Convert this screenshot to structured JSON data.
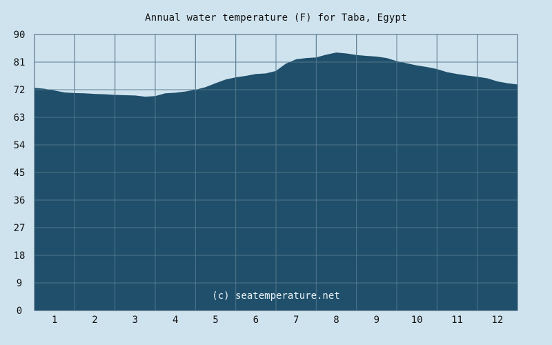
{
  "title": "Annual water temperature (F) for Taba, Egypt",
  "watermark": "(c) seatemperature.net",
  "colors": {
    "background": "#cfe3ee",
    "area_fill": "#1f4f6a",
    "grid": "#5f7f95",
    "text": "#111111"
  },
  "chart_data": {
    "type": "area",
    "title": "Annual water temperature (F) for Taba, Egypt",
    "xlabel": "",
    "ylabel": "",
    "x_ticks": [
      "1",
      "2",
      "3",
      "4",
      "5",
      "6",
      "7",
      "8",
      "9",
      "10",
      "11",
      "12"
    ],
    "y_ticks": [
      "0",
      "9",
      "18",
      "27",
      "36",
      "45",
      "54",
      "63",
      "72",
      "81",
      "90"
    ],
    "ylim": [
      0,
      90
    ],
    "xlim": [
      0.5,
      12.5
    ],
    "grid": true,
    "series": [
      {
        "x": [
          0.5,
          0.75,
          1.0,
          1.25,
          1.5,
          1.75,
          2.0,
          2.25,
          2.5,
          2.75,
          3.0,
          3.25,
          3.5,
          3.75,
          4.0,
          4.25,
          4.5,
          4.75,
          5.0,
          5.25,
          5.5,
          5.75,
          6.0,
          6.25,
          6.5,
          6.75,
          7.0,
          7.25,
          7.5,
          7.75,
          8.0,
          8.25,
          8.5,
          8.75,
          9.0,
          9.25,
          9.5,
          9.75,
          10.0,
          10.25,
          10.5,
          10.75,
          11.0,
          11.25,
          11.5,
          11.75,
          12.0,
          12.25,
          12.5
        ],
        "values": [
          72.5,
          72.2,
          71.6,
          71.0,
          70.8,
          70.7,
          70.5,
          70.4,
          70.2,
          70.1,
          70.0,
          69.6,
          69.8,
          70.7,
          70.9,
          71.3,
          71.9,
          72.7,
          74.0,
          75.2,
          75.9,
          76.4,
          77.0,
          77.2,
          78.0,
          80.4,
          81.8,
          82.2,
          82.4,
          83.3,
          84.0,
          83.7,
          83.2,
          82.9,
          82.7,
          82.2,
          81.2,
          80.5,
          79.8,
          79.3,
          78.6,
          77.6,
          77.0,
          76.5,
          76.1,
          75.6,
          74.6,
          74.0,
          73.6
        ]
      }
    ]
  }
}
